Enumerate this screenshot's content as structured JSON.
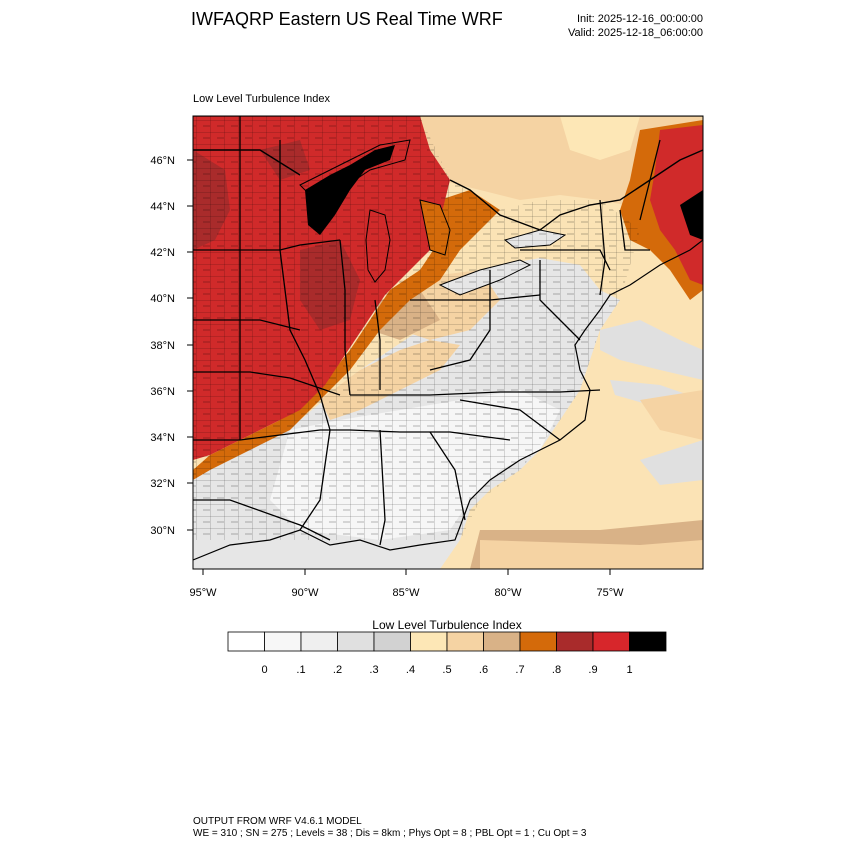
{
  "header": {
    "title": "IWFAQRP Eastern US Real Time WRF",
    "init": "Init: 2025-12-16_00:00:00",
    "valid": "Valid: 2025-12-18_06:00:00"
  },
  "map": {
    "subtitle": "Low Level Turbulence Index",
    "lat_ticks": [
      "46°N",
      "44°N",
      "42°N",
      "40°N",
      "38°N",
      "36°N",
      "34°N",
      "32°N",
      "30°N"
    ],
    "lon_ticks": [
      "95°W",
      "90°W",
      "85°W",
      "80°W",
      "75°W"
    ],
    "ocean_color": "#fbe3b5",
    "land_color": "#d9d9d9",
    "high_color": "#d02a2a",
    "peak_color": "#000000"
  },
  "colorbar": {
    "title": "Low Level Turbulence Index",
    "labels": [
      "0",
      ".1",
      ".2",
      ".3",
      ".4",
      ".5",
      ".6",
      ".7",
      ".8",
      ".9",
      "1"
    ],
    "colors": [
      "#ffffff",
      "#f7f7f7",
      "#efefef",
      "#e0e0e0",
      "#d2d2d2",
      "#fde7b6",
      "#f5d3a3",
      "#d9b287",
      "#d46a0a",
      "#a92b2b",
      "#d7262b",
      "#000000"
    ]
  },
  "footer": {
    "line1": "OUTPUT FROM WRF V4.6.1 MODEL",
    "line2": "WE = 310 ; SN = 275 ; Levels = 38 ; Dis = 8km ; Phys Opt = 8 ; PBL Opt = 1 ; Cu Opt = 3"
  }
}
